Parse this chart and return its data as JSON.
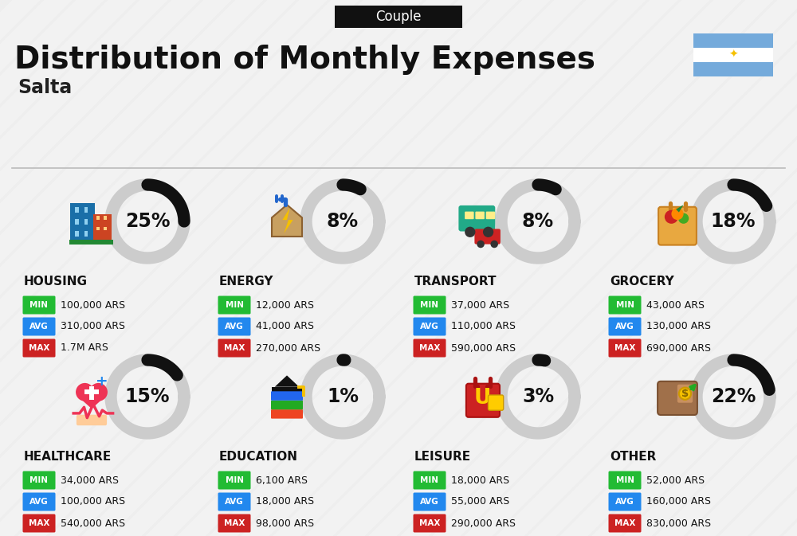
{
  "title": "Distribution of Monthly Expenses",
  "subtitle": "Couple",
  "location": "Salta",
  "background_color": "#eeeeee",
  "categories": [
    {
      "name": "HOUSING",
      "percent": 25,
      "min": "100,000 ARS",
      "avg": "310,000 ARS",
      "max": "1.7M ARS",
      "row": 0,
      "col": 0
    },
    {
      "name": "ENERGY",
      "percent": 8,
      "min": "12,000 ARS",
      "avg": "41,000 ARS",
      "max": "270,000 ARS",
      "row": 0,
      "col": 1
    },
    {
      "name": "TRANSPORT",
      "percent": 8,
      "min": "37,000 ARS",
      "avg": "110,000 ARS",
      "max": "590,000 ARS",
      "row": 0,
      "col": 2
    },
    {
      "name": "GROCERY",
      "percent": 18,
      "min": "43,000 ARS",
      "avg": "130,000 ARS",
      "max": "690,000 ARS",
      "row": 0,
      "col": 3
    },
    {
      "name": "HEALTHCARE",
      "percent": 15,
      "min": "34,000 ARS",
      "avg": "100,000 ARS",
      "max": "540,000 ARS",
      "row": 1,
      "col": 0
    },
    {
      "name": "EDUCATION",
      "percent": 1,
      "min": "6,100 ARS",
      "avg": "18,000 ARS",
      "max": "98,000 ARS",
      "row": 1,
      "col": 1
    },
    {
      "name": "LEISURE",
      "percent": 3,
      "min": "18,000 ARS",
      "avg": "55,000 ARS",
      "max": "290,000 ARS",
      "row": 1,
      "col": 2
    },
    {
      "name": "OTHER",
      "percent": 22,
      "min": "52,000 ARS",
      "avg": "160,000 ARS",
      "max": "830,000 ARS",
      "row": 1,
      "col": 3
    }
  ],
  "color_min": "#22bb33",
  "color_avg": "#2288ee",
  "color_max": "#cc2222",
  "arc_filled": "#111111",
  "arc_empty": "#cccccc",
  "flag_blue": "#74aadb",
  "flag_white": "#ffffff",
  "sun_color": "#f5c000"
}
